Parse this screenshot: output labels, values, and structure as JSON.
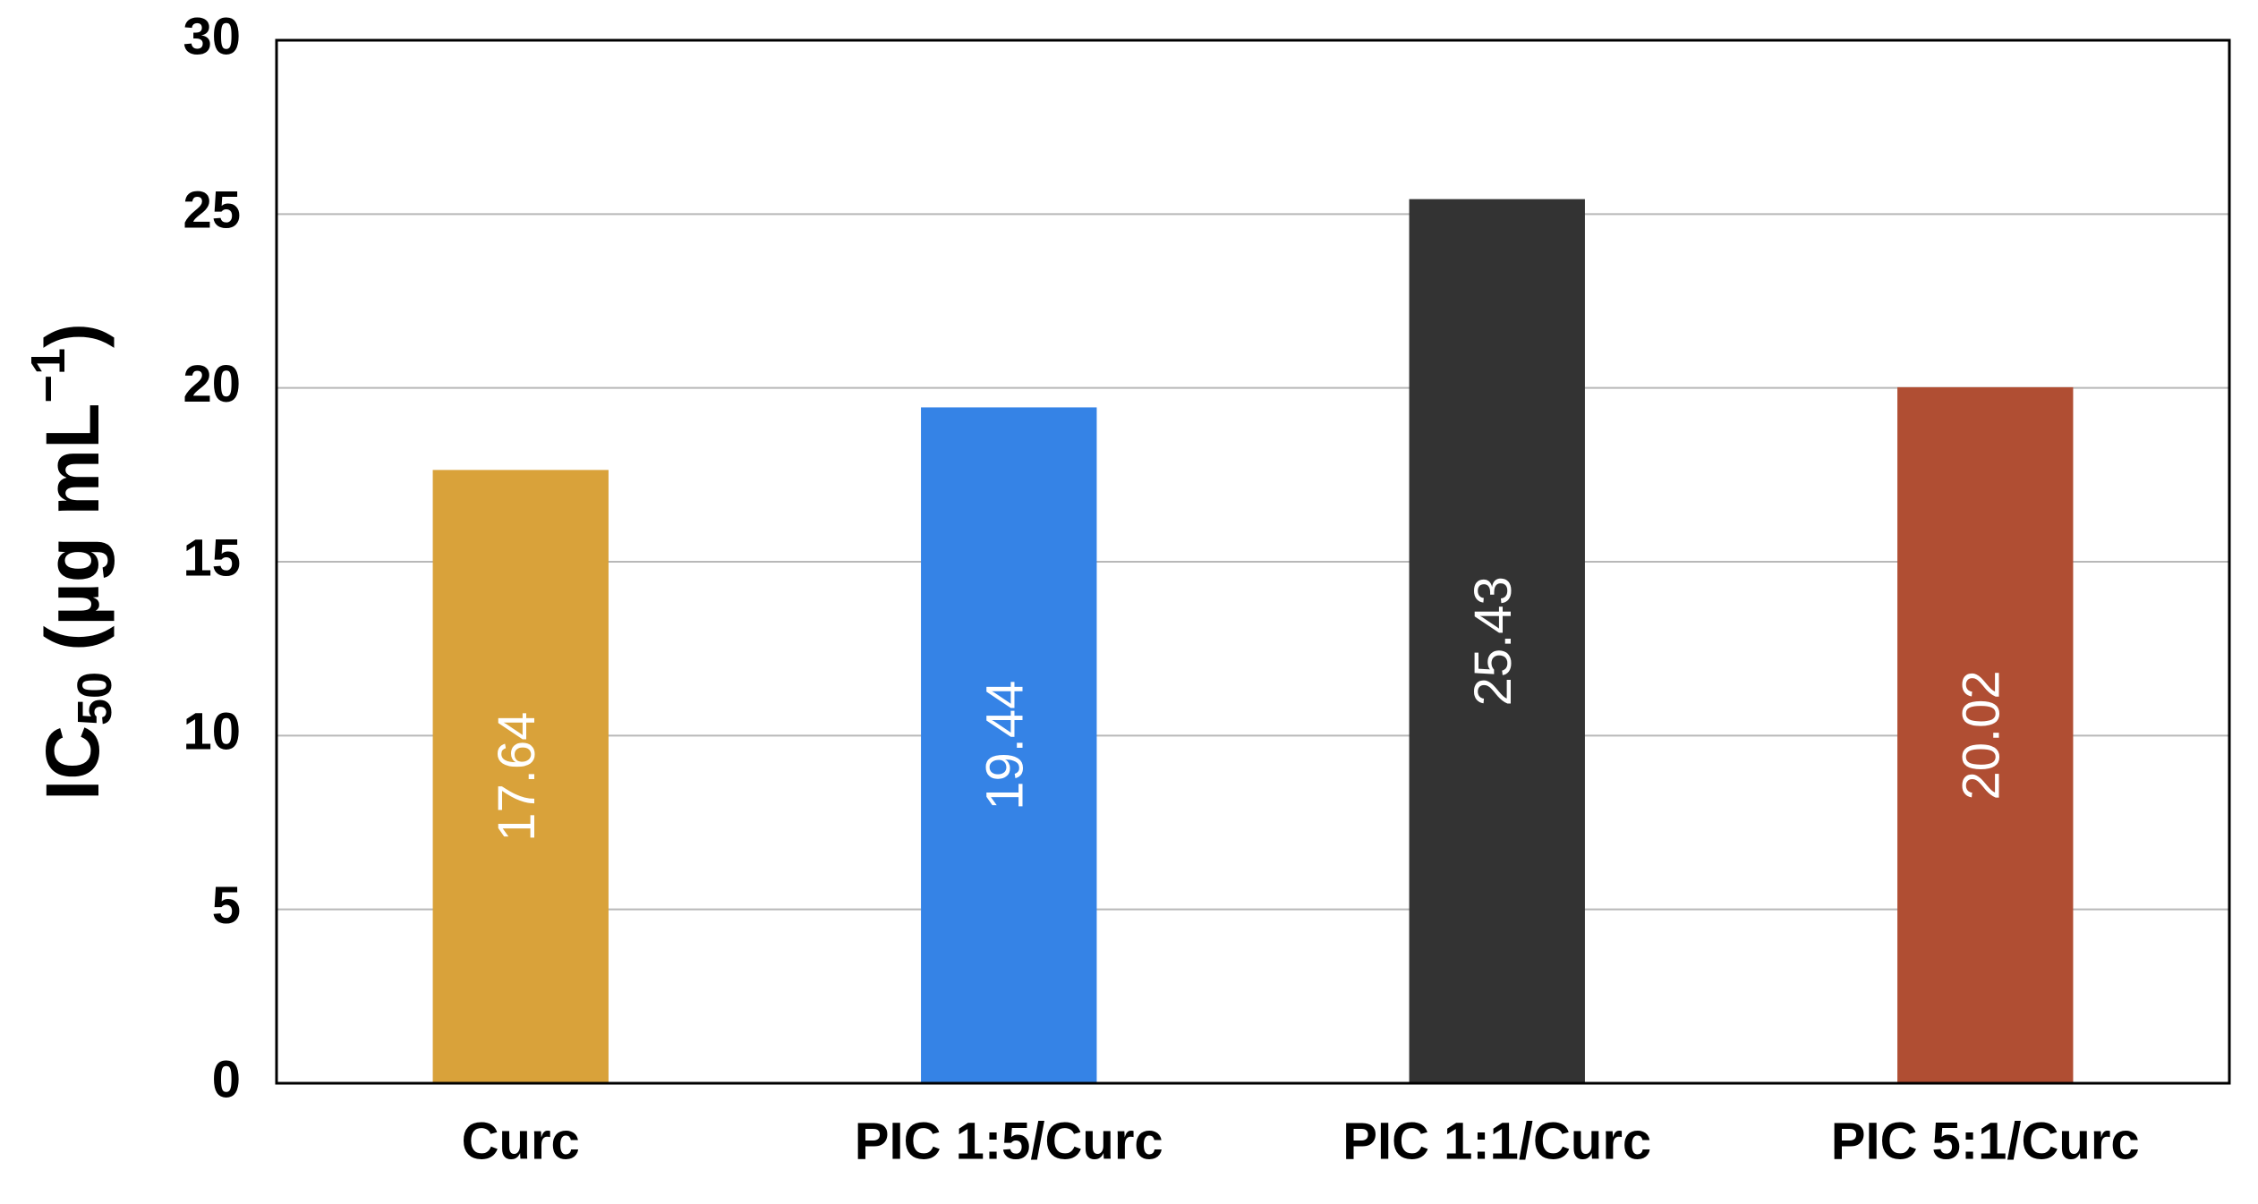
{
  "chart_data": {
    "type": "bar",
    "y_label": {
      "main": "IC",
      "subscript": "50",
      "unit": " (µg mL",
      "superscript": "−1",
      "close": ")"
    },
    "categories": [
      "Curc",
      "PIC 1:5/Curc",
      "PIC 1:1/Curc",
      "PIC 5:1/Curc"
    ],
    "values": [
      17.64,
      19.44,
      25.43,
      20.02
    ],
    "colors": [
      "#d9a23a",
      "#3583e6",
      "#333333",
      "#b04e33"
    ],
    "ylim": [
      0,
      30
    ],
    "yticks": [
      0,
      5,
      10,
      15,
      20,
      25,
      30
    ],
    "grid": true
  }
}
